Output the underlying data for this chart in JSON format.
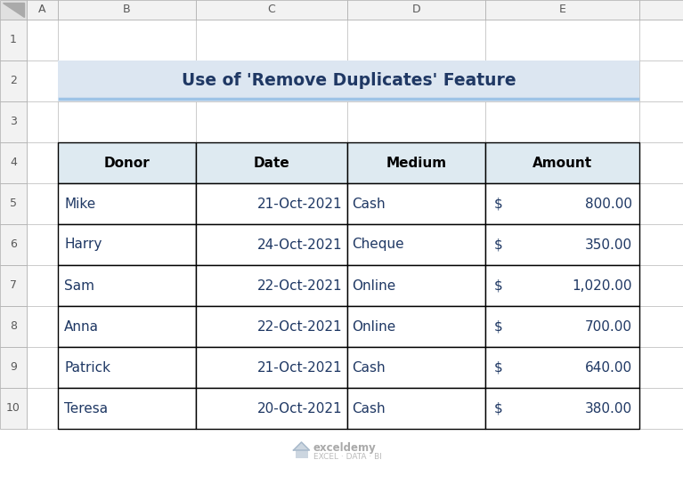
{
  "title": "Use of 'Remove Duplicates' Feature",
  "title_color": "#1F3864",
  "title_bg": "#DCE6F1",
  "title_underline_color": "#9DC3E6",
  "header_bg": "#DEEAF1",
  "rows": [
    [
      "Mike",
      "21-Oct-2021",
      "Cash",
      "$",
      "800.00"
    ],
    [
      "Harry",
      "24-Oct-2021",
      "Cheque",
      "$",
      "350.00"
    ],
    [
      "Sam",
      "22-Oct-2021",
      "Online",
      "$",
      "1,020.00"
    ],
    [
      "Anna",
      "22-Oct-2021",
      "Online",
      "$",
      "700.00"
    ],
    [
      "Patrick",
      "21-Oct-2021",
      "Cash",
      "$",
      "640.00"
    ],
    [
      "Teresa",
      "20-Oct-2021",
      "Cash",
      "$",
      "380.00"
    ]
  ],
  "col_labels": [
    "A",
    "B",
    "C",
    "D",
    "E",
    ""
  ],
  "row_labels": [
    "1",
    "2",
    "3",
    "4",
    "5",
    "6",
    "7",
    "8",
    "9",
    "10"
  ],
  "header_fg": "#595959",
  "cell_text_color": "#000000",
  "amount_text_color": "#1F3864",
  "data_text_color": "#1F3864",
  "fig_bg": "#FFFFFF",
  "grid_light": "#C0C0C0",
  "grid_dark": "#000000",
  "row_label_bg": "#F2F2F2",
  "col_header_bg": "#F2F2F2",
  "watermark_main": "#AAAAAA",
  "watermark_sub": "#BBBBBB",
  "corner_bg": "#E0E0E0"
}
